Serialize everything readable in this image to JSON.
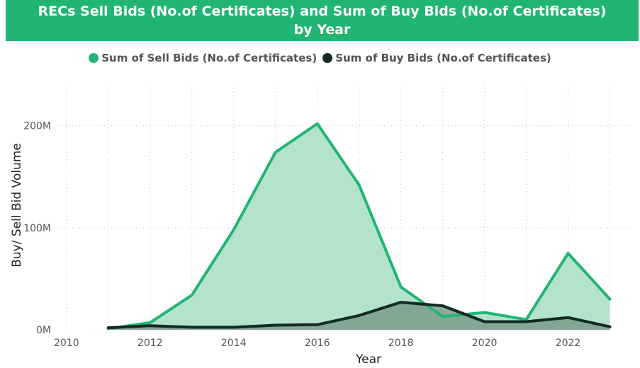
{
  "title": "RECs Sell Bids (No.of Certificates) and Sum of Buy Bids (No.of Certificates) by Year",
  "chart_data": {
    "type": "area",
    "title": "RECs Sell Bids (No.of Certificates) and Sum of Buy Bids (No.of Certificates) by Year",
    "xlabel": "Year",
    "ylabel": "Buy/ Sell Bid Volume",
    "xlim": [
      2009.8,
      2023.5
    ],
    "ylim": [
      0,
      240000000
    ],
    "x_ticks": [
      "2010",
      "2012",
      "2014",
      "2016",
      "2018",
      "2020",
      "2022"
    ],
    "y_ticks": [
      "0M",
      "100M",
      "200M"
    ],
    "legend_position": "top-center",
    "grid": true,
    "x": [
      2011,
      2012,
      2013,
      2014,
      2015,
      2016,
      2017,
      2018,
      2019,
      2020,
      2021,
      2022,
      2023
    ],
    "series": [
      {
        "name": "Sum of Sell Bids (No.of Certificates)",
        "color": "#21b573",
        "fill": "#b3e4cb",
        "values": [
          1000000,
          7000000,
          34000000,
          98000000,
          174000000,
          202000000,
          142000000,
          42000000,
          13000000,
          17000000,
          10000000,
          75000000,
          30000000
        ]
      },
      {
        "name": "Sum of Buy Bids (No.of Certificates)",
        "color": "#122a22",
        "fill": "#7a9c88",
        "values": [
          2000000,
          4000000,
          2500000,
          2500000,
          4500000,
          5000000,
          14000000,
          27000000,
          23500000,
          8000000,
          8000000,
          12000000,
          3000000
        ]
      }
    ]
  }
}
